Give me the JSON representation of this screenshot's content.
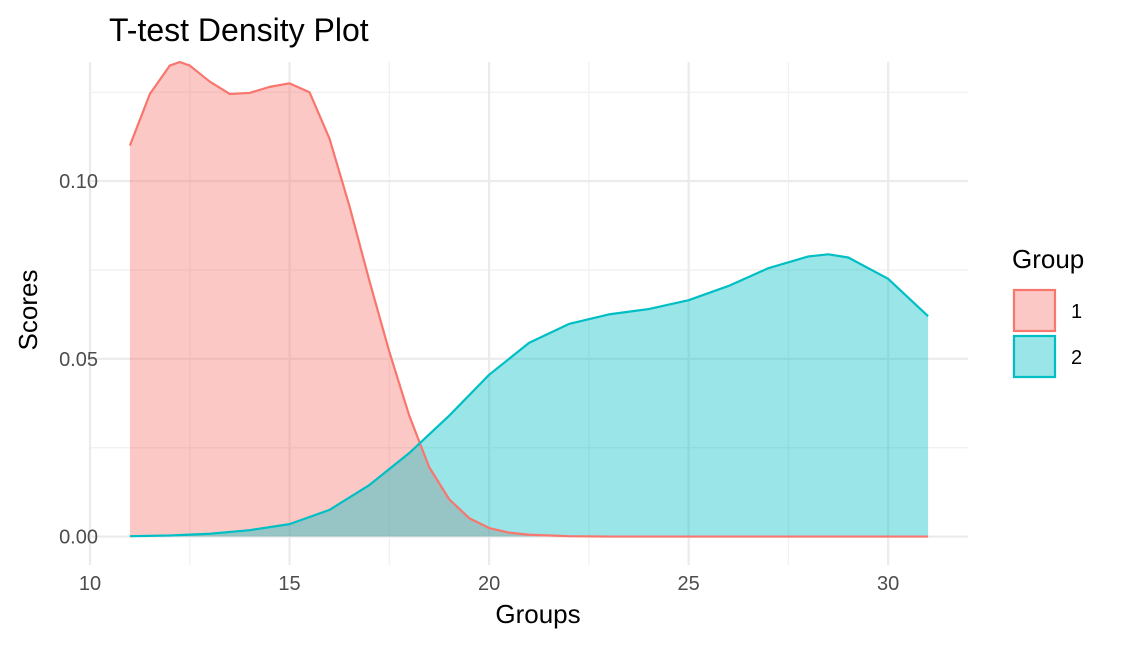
{
  "chart_data": {
    "type": "area",
    "title": "T-test Density Plot",
    "xlabel": "Groups",
    "ylabel": "Scores",
    "xlim": [
      10,
      32
    ],
    "ylim": [
      -0.008,
      0.1335
    ],
    "x_ticks": [
      10,
      15,
      20,
      25,
      30
    ],
    "x_tick_labels": [
      "10",
      "15",
      "20",
      "25",
      "30"
    ],
    "y_ticks": [
      0,
      0.05,
      0.1
    ],
    "y_tick_labels": [
      "0.00",
      "0.05",
      "0.10"
    ],
    "grid": true,
    "legend": {
      "title": "Group",
      "position": "right"
    },
    "series": [
      {
        "name": "1",
        "color": "#F8766D",
        "fill": "#F8766D",
        "fill_opacity": 0.4,
        "x": [
          11.0,
          11.5,
          12.0,
          12.25,
          12.5,
          13.0,
          13.5,
          14.0,
          14.5,
          15.0,
          15.5,
          16.0,
          16.5,
          17.0,
          17.5,
          18.0,
          18.5,
          19.0,
          19.5,
          20.0,
          20.5,
          21.0,
          22.0,
          23.0,
          25.0,
          28.0,
          31.0
        ],
        "y": [
          0.11,
          0.1245,
          0.1325,
          0.1335,
          0.1325,
          0.128,
          0.1245,
          0.1248,
          0.1265,
          0.1275,
          0.125,
          0.112,
          0.093,
          0.072,
          0.052,
          0.034,
          0.0195,
          0.0105,
          0.0052,
          0.0024,
          0.0011,
          0.0005,
          0.0001,
          0.0,
          0.0,
          0.0,
          0.0
        ]
      },
      {
        "name": "2",
        "color": "#00BFC4",
        "fill": "#00BFC4",
        "fill_opacity": 0.4,
        "x": [
          11.0,
          12.0,
          13.0,
          14.0,
          15.0,
          16.0,
          17.0,
          18.0,
          19.0,
          20.0,
          21.0,
          22.0,
          23.0,
          24.0,
          25.0,
          26.0,
          27.0,
          28.0,
          28.5,
          29.0,
          30.0,
          31.0
        ],
        "y": [
          0.0001,
          0.0003,
          0.0008,
          0.0018,
          0.0035,
          0.0075,
          0.0145,
          0.0235,
          0.034,
          0.0455,
          0.0545,
          0.0598,
          0.0625,
          0.064,
          0.0665,
          0.0705,
          0.0755,
          0.0788,
          0.0794,
          0.0785,
          0.0725,
          0.062
        ]
      }
    ]
  }
}
